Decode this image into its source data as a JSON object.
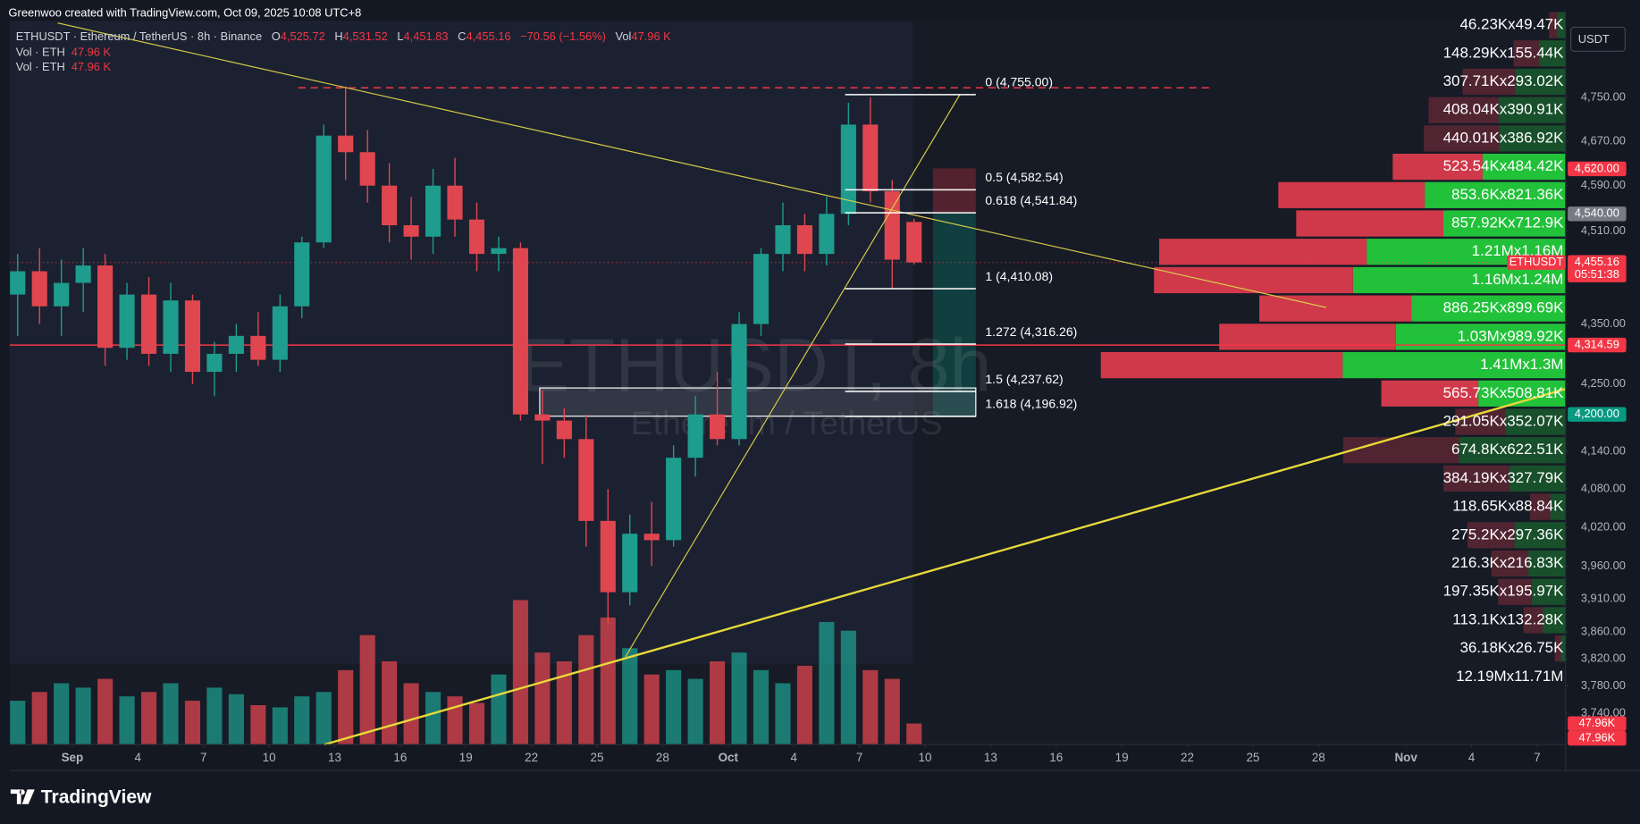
{
  "header": {
    "credit": "Greenwoo created with TradingView.com, Oct 09, 2025 10:08 UTC+8",
    "symbol": "ETHUSDT · Ethereum / TetherUS · 8h · Binance",
    "ohlc": [
      {
        "key": "O",
        "value": "4,525.72"
      },
      {
        "key": "H",
        "value": "4,531.52"
      },
      {
        "key": "L",
        "value": "4,451.83"
      },
      {
        "key": "C",
        "value": "4,455.16"
      }
    ],
    "change": "−70.56 (−1.56%)",
    "volume_key": "Vol",
    "volume": "47.96 K"
  },
  "indicators": [
    {
      "name": "Vol · ETH",
      "value": "47.96 K"
    },
    {
      "name": "Vol · ETH",
      "value": "47.96 K"
    }
  ],
  "ui": {
    "currency": "USDT",
    "brand": "TradingView"
  },
  "chart_data": {
    "type": "candlestick",
    "log_scale": true,
    "grid": false,
    "watermark": "ETHUSDT, 8h",
    "watermark_sub": "Ethereum / TetherUS",
    "up_color": "#1e9c8d",
    "down_color": "#e0464f",
    "xlim": [
      -2.87,
      68.3
    ],
    "ylim": [
      3695,
      4893
    ],
    "xticks": [
      {
        "value": 0,
        "label": "Sep"
      },
      {
        "value": 3,
        "label": "4"
      },
      {
        "value": 6,
        "label": "7"
      },
      {
        "value": 9,
        "label": "10"
      },
      {
        "value": 12,
        "label": "13"
      },
      {
        "value": 15,
        "label": "16"
      },
      {
        "value": 18,
        "label": "19"
      },
      {
        "value": 21,
        "label": "22"
      },
      {
        "value": 24,
        "label": "25"
      },
      {
        "value": 27,
        "label": "28"
      },
      {
        "value": 30,
        "label": "Oct"
      },
      {
        "value": 33,
        "label": "4"
      },
      {
        "value": 36,
        "label": "7"
      },
      {
        "value": 39,
        "label": "10"
      },
      {
        "value": 42,
        "label": "13"
      },
      {
        "value": 45,
        "label": "16"
      },
      {
        "value": 48,
        "label": "19"
      },
      {
        "value": 51,
        "label": "22"
      },
      {
        "value": 54,
        "label": "25"
      },
      {
        "value": 57,
        "label": "28"
      },
      {
        "value": 61,
        "label": "Nov"
      },
      {
        "value": 64,
        "label": "4"
      },
      {
        "value": 67,
        "label": "7"
      }
    ],
    "yticks": [
      {
        "value": 4750,
        "label": "4,750.00"
      },
      {
        "value": 4670,
        "label": "4,670.00"
      },
      {
        "value": 4590,
        "label": "4,590.00"
      },
      {
        "value": 4510,
        "label": "4,510.00"
      },
      {
        "value": 4350,
        "label": "4,350.00"
      },
      {
        "value": 4250,
        "label": "4,250.00"
      },
      {
        "value": 4140,
        "label": "4,140.00"
      },
      {
        "value": 4080,
        "label": "4,080.00"
      },
      {
        "value": 4020,
        "label": "4,020.00"
      },
      {
        "value": 3960,
        "label": "3,960.00"
      },
      {
        "value": 3910,
        "label": "3,910.00"
      },
      {
        "value": 3860,
        "label": "3,860.00"
      },
      {
        "value": 3820,
        "label": "3,820.00"
      },
      {
        "value": 3780,
        "label": "3,780.00"
      },
      {
        "value": 3740,
        "label": "3,740.00"
      }
    ],
    "candles": [
      {
        "x": -2.5,
        "open": 4400,
        "high": 4470,
        "low": 4330,
        "close": 4440
      },
      {
        "x": -1.5,
        "open": 4440,
        "high": 4480,
        "low": 4350,
        "close": 4380
      },
      {
        "x": -0.5,
        "open": 4380,
        "high": 4460,
        "low": 4330,
        "close": 4420
      },
      {
        "x": 0.5,
        "open": 4420,
        "high": 4480,
        "low": 4370,
        "close": 4450
      },
      {
        "x": 1.5,
        "open": 4450,
        "high": 4470,
        "low": 4280,
        "close": 4310
      },
      {
        "x": 2.5,
        "open": 4310,
        "high": 4420,
        "low": 4290,
        "close": 4400
      },
      {
        "x": 3.5,
        "open": 4400,
        "high": 4430,
        "low": 4280,
        "close": 4300
      },
      {
        "x": 4.5,
        "open": 4300,
        "high": 4420,
        "low": 4270,
        "close": 4390
      },
      {
        "x": 5.5,
        "open": 4390,
        "high": 4400,
        "low": 4250,
        "close": 4270
      },
      {
        "x": 6.5,
        "open": 4270,
        "high": 4320,
        "low": 4230,
        "close": 4300
      },
      {
        "x": 7.5,
        "open": 4300,
        "high": 4350,
        "low": 4270,
        "close": 4330
      },
      {
        "x": 8.5,
        "open": 4330,
        "high": 4370,
        "low": 4280,
        "close": 4290
      },
      {
        "x": 9.5,
        "open": 4290,
        "high": 4400,
        "low": 4270,
        "close": 4380
      },
      {
        "x": 10.5,
        "open": 4380,
        "high": 4500,
        "low": 4360,
        "close": 4490
      },
      {
        "x": 11.5,
        "open": 4490,
        "high": 4700,
        "low": 4480,
        "close": 4680
      },
      {
        "x": 12.5,
        "open": 4680,
        "high": 4770,
        "low": 4600,
        "close": 4650
      },
      {
        "x": 13.5,
        "open": 4650,
        "high": 4690,
        "low": 4560,
        "close": 4590
      },
      {
        "x": 14.5,
        "open": 4590,
        "high": 4630,
        "low": 4490,
        "close": 4520
      },
      {
        "x": 15.5,
        "open": 4520,
        "high": 4570,
        "low": 4460,
        "close": 4500
      },
      {
        "x": 16.5,
        "open": 4500,
        "high": 4620,
        "low": 4470,
        "close": 4590
      },
      {
        "x": 17.5,
        "open": 4590,
        "high": 4640,
        "low": 4500,
        "close": 4530
      },
      {
        "x": 18.5,
        "open": 4530,
        "high": 4560,
        "low": 4440,
        "close": 4470
      },
      {
        "x": 19.5,
        "open": 4470,
        "high": 4500,
        "low": 4440,
        "close": 4480
      },
      {
        "x": 20.5,
        "open": 4480,
        "high": 4490,
        "low": 4190,
        "close": 4200
      },
      {
        "x": 21.5,
        "open": 4200,
        "high": 4240,
        "low": 4120,
        "close": 4190
      },
      {
        "x": 22.5,
        "open": 4190,
        "high": 4210,
        "low": 4130,
        "close": 4160
      },
      {
        "x": 23.5,
        "open": 4160,
        "high": 4200,
        "low": 3990,
        "close": 4030
      },
      {
        "x": 24.5,
        "open": 4030,
        "high": 4080,
        "low": 3870,
        "close": 3920
      },
      {
        "x": 25.5,
        "open": 3920,
        "high": 4040,
        "low": 3900,
        "close": 4010
      },
      {
        "x": 26.5,
        "open": 4010,
        "high": 4060,
        "low": 3960,
        "close": 4000
      },
      {
        "x": 27.5,
        "open": 4000,
        "high": 4150,
        "low": 3990,
        "close": 4130
      },
      {
        "x": 28.5,
        "open": 4130,
        "high": 4230,
        "low": 4100,
        "close": 4200
      },
      {
        "x": 29.5,
        "open": 4200,
        "high": 4270,
        "low": 4150,
        "close": 4160
      },
      {
        "x": 30.5,
        "open": 4160,
        "high": 4370,
        "low": 4150,
        "close": 4350
      },
      {
        "x": 31.5,
        "open": 4350,
        "high": 4480,
        "low": 4330,
        "close": 4470
      },
      {
        "x": 32.5,
        "open": 4470,
        "high": 4560,
        "low": 4440,
        "close": 4520
      },
      {
        "x": 33.5,
        "open": 4520,
        "high": 4540,
        "low": 4440,
        "close": 4470
      },
      {
        "x": 34.5,
        "open": 4470,
        "high": 4570,
        "low": 4450,
        "close": 4540
      },
      {
        "x": 35.5,
        "open": 4540,
        "high": 4740,
        "low": 4520,
        "close": 4700
      },
      {
        "x": 36.5,
        "open": 4700,
        "high": 4750,
        "low": 4560,
        "close": 4580
      },
      {
        "x": 37.5,
        "open": 4580,
        "high": 4600,
        "low": 4410,
        "close": 4460
      },
      {
        "x": 38.5,
        "open": 4525.72,
        "high": 4531.52,
        "low": 4451.83,
        "close": 4455.16
      }
    ],
    "volume": {
      "lim": [
        0,
        430
      ],
      "values": [
        100,
        120,
        140,
        130,
        150,
        110,
        120,
        140,
        100,
        130,
        115,
        90,
        85,
        110,
        120,
        170,
        250,
        190,
        140,
        120,
        110,
        95,
        160,
        330,
        210,
        190,
        250,
        290,
        220,
        160,
        170,
        150,
        190,
        210,
        170,
        140,
        180,
        280,
        260,
        170,
        150,
        47.96
      ]
    },
    "fib": [
      {
        "price": 4755.0,
        "label": "0 (4,755.00)"
      },
      {
        "price": 4582.54,
        "label": "0.5 (4,582.54)"
      },
      {
        "price": 4541.84,
        "label": "0.618 (4,541.84)"
      },
      {
        "price": 4410.08,
        "label": "1 (4,410.08)"
      },
      {
        "price": 4316.26,
        "label": "1.272 (4,316.26)"
      },
      {
        "price": 4237.62,
        "label": "1.5 (4,237.62)"
      },
      {
        "price": 4196.92,
        "label": "1.618 (4,196.92)"
      }
    ],
    "price_tags": [
      {
        "value": 4620,
        "label": "4,620.00",
        "color": "#f23645"
      },
      {
        "value": 4540,
        "label": "4,540.00",
        "color": "#787b86"
      },
      {
        "value": 4455.16,
        "label": "4,455.16",
        "color": "#f23645",
        "name": "ETHUSDT",
        "countdown": "05:51:38"
      },
      {
        "value": 4314.59,
        "label": "4,314.59",
        "color": "#f23645"
      },
      {
        "value": 4200,
        "label": "4,200.00",
        "color": "#089981"
      }
    ],
    "volume_tags": [
      "47.96K",
      "47.96K"
    ],
    "profile": {
      "sell_color": "#d0394a",
      "buy_color": "#22c13a",
      "rows": [
        {
          "label": "46.23Kx49.47K",
          "sell": 46.23,
          "buy": 49.47,
          "value_area": false
        },
        {
          "label": "148.29Kx155.44K",
          "sell": 148.29,
          "buy": 155.44,
          "value_area": false
        },
        {
          "label": "307.71Kx293.02K",
          "sell": 307.71,
          "buy": 293.02,
          "value_area": false
        },
        {
          "label": "408.04Kx390.91K",
          "sell": 408.04,
          "buy": 390.91,
          "value_area": false
        },
        {
          "label": "440.01Kx386.92K",
          "sell": 440.01,
          "buy": 386.92,
          "value_area": false
        },
        {
          "label": "523.54Kx484.42K",
          "sell": 523.54,
          "buy": 484.42,
          "value_area": true
        },
        {
          "label": "853.6Kx821.36K",
          "sell": 853.6,
          "buy": 821.36,
          "value_area": true
        },
        {
          "label": "857.92Kx712.9K",
          "sell": 857.92,
          "buy": 712.9,
          "value_area": true
        },
        {
          "label": "1.21Mx1.16M",
          "sell": 1210,
          "buy": 1160,
          "value_area": true
        },
        {
          "label": "1.16Mx1.24M",
          "sell": 1160,
          "buy": 1240,
          "value_area": true
        },
        {
          "label": "886.25Kx899.69K",
          "sell": 886.25,
          "buy": 899.69,
          "value_area": true
        },
        {
          "label": "1.03Mx989.92K",
          "sell": 1030,
          "buy": 989.92,
          "value_area": true
        },
        {
          "label": "1.41Mx1.3M",
          "sell": 1410,
          "buy": 1300,
          "value_area": true
        },
        {
          "label": "565.73Kx508.81K",
          "sell": 565.73,
          "buy": 508.81,
          "value_area": true
        },
        {
          "label": "291.05Kx352.07K",
          "sell": 291.05,
          "buy": 352.07,
          "value_area": false
        },
        {
          "label": "674.8Kx622.51K",
          "sell": 674.8,
          "buy": 622.51,
          "value_area": false
        },
        {
          "label": "384.19Kx327.79K",
          "sell": 384.19,
          "buy": 327.79,
          "value_area": false
        },
        {
          "label": "118.65Kx88.84K",
          "sell": 118.65,
          "buy": 88.84,
          "value_area": false
        },
        {
          "label": "275.2Kx297.36K",
          "sell": 275.2,
          "buy": 297.36,
          "value_area": false
        },
        {
          "label": "216.3Kx216.83K",
          "sell": 216.3,
          "buy": 216.83,
          "value_area": false
        },
        {
          "label": "197.35Kx195.97K",
          "sell": 197.35,
          "buy": 195.97,
          "value_area": false
        },
        {
          "label": "113.1Kx132.28K",
          "sell": 113.1,
          "buy": 132.28,
          "value_area": false
        },
        {
          "label": "36.18Kx26.75K",
          "sell": 36.18,
          "buy": 26.75,
          "value_area": false
        }
      ],
      "total": "12.19Mx11.71M"
    }
  }
}
